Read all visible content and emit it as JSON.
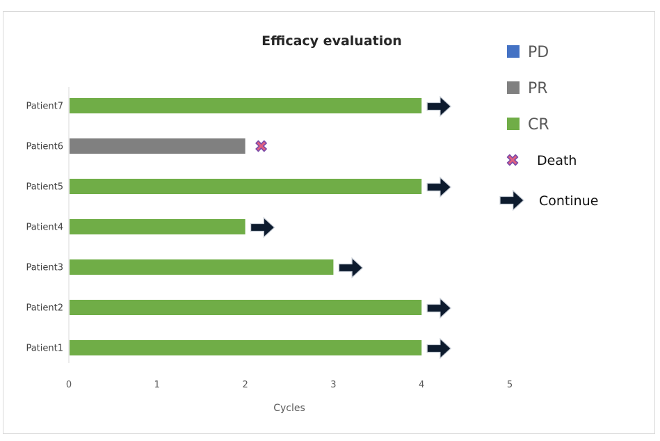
{
  "chart_data": {
    "type": "bar",
    "orientation": "horizontal",
    "title": "Efficacy evaluation",
    "xlabel": "Cycles",
    "ylabel": "",
    "xlim": [
      0,
      5
    ],
    "x_ticks": [
      "0",
      "1",
      "2",
      "3",
      "4",
      "5"
    ],
    "grid": false,
    "legend_position": "right",
    "categories": [
      "Patient1",
      "Patient2",
      "Patient3",
      "Patient4",
      "Patient5",
      "Patient6",
      "Patient7"
    ],
    "values": [
      4,
      4,
      3,
      2,
      4,
      2,
      4
    ],
    "response": [
      "CR",
      "CR",
      "CR",
      "CR",
      "CR",
      "PR",
      "CR"
    ],
    "markers": [
      "Continue",
      "Continue",
      "Continue",
      "Continue",
      "Continue",
      "Death",
      "Continue"
    ],
    "legend": [
      {
        "label": "PD",
        "symbol": "square",
        "color": "#4472c4"
      },
      {
        "label": "PR",
        "symbol": "square",
        "color": "#808080"
      },
      {
        "label": "CR",
        "symbol": "square",
        "color": "#70ad47"
      },
      {
        "label": "Death",
        "symbol": "cross",
        "color": "#e06080"
      },
      {
        "label": "Continue",
        "symbol": "arrow",
        "color": "#0d1b2e"
      }
    ],
    "colors": {
      "PD": "#4472c4",
      "PR": "#808080",
      "CR": "#70ad47",
      "death": "#e06080",
      "death_outline": "#7b4aa8",
      "continue": "#0d1b2e"
    }
  }
}
